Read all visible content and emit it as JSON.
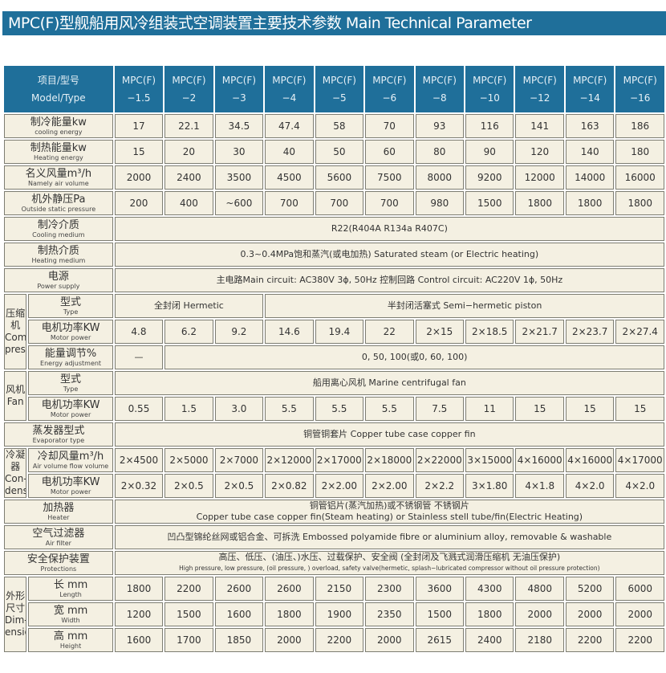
{
  "title": "MPC(F)型舰船用风冷组装式空调装置主要技术参数 Main Technical Parameter",
  "header": {
    "label_cn": "项目/型号",
    "label_en": "Model/Type",
    "models": [
      "MPC(F) −1.5",
      "MPC(F) −2",
      "MPC(F) −3",
      "MPC(F) −4",
      "MPC(F) −5",
      "MPC(F) −6",
      "MPC(F) −8",
      "MPC(F) −10",
      "MPC(F) −12",
      "MPC(F) −14",
      "MPC(F) −16"
    ]
  },
  "groups": {
    "compressor": "压缩机 Com-pressor",
    "fan": "风机 Fan",
    "condenser": "冷凝器 Con-denser",
    "dimension": "外形尺寸 Dim-ension"
  },
  "rows": [
    {
      "id": "cooling",
      "cn": "制冷能量kw",
      "en": "cooling energy",
      "cells": [
        "17",
        "22.1",
        "34.5",
        "47.4",
        "58",
        "70",
        "93",
        "116",
        "141",
        "163",
        "186"
      ]
    },
    {
      "id": "heating",
      "cn": "制热能量kw",
      "en": "Heating energy",
      "cells": [
        "15",
        "20",
        "30",
        "40",
        "50",
        "60",
        "80",
        "90",
        "120",
        "140",
        "180"
      ]
    },
    {
      "id": "air",
      "cn": "名义风量m³/h",
      "en": "Namely air volume",
      "cells": [
        "2000",
        "2400",
        "3500",
        "4500",
        "5600",
        "7500",
        "8000",
        "9200",
        "12000",
        "14000",
        "16000"
      ]
    },
    {
      "id": "static",
      "cn": "机外静压Pa",
      "en": "Outside static pressure",
      "cells": [
        "200",
        "400",
        "~600",
        "700",
        "700",
        "700",
        "980",
        "1500",
        "1800",
        "1800",
        "1800"
      ]
    },
    {
      "id": "cmedium",
      "cn": "制冷介质",
      "en": "Cooling medium",
      "cells": [
        "R22(R404A R134a R407C)"
      ]
    },
    {
      "id": "hmedium",
      "cn": "制热介质",
      "en": "Heating medium",
      "cells": [
        "0.3~0.4MPa饱和蒸汽(或电加热)  Saturated steam (or Electric heating)"
      ]
    },
    {
      "id": "power",
      "cn": "电源",
      "en": "Power supply",
      "cells": [
        "主电路Main circuit: AC380V 3ϕ, 50Hz        控制回路 Control circuit: AC220V 1ϕ, 50Hz"
      ]
    },
    {
      "id": "ctype",
      "group": "compressor",
      "cn": "型式",
      "en": "Type",
      "cells": [
        "全封闭 Hermetic",
        "半封闭活塞式 Semi−hermetic piston"
      ]
    },
    {
      "id": "cmotor",
      "group": "compressor",
      "cn": "电机功率KW",
      "en": "Motor power",
      "cells": [
        "4.8",
        "6.2",
        "9.2",
        "14.6",
        "19.4",
        "22",
        "2×15",
        "2×18.5",
        "2×21.7",
        "2×23.7",
        "2×27.4"
      ]
    },
    {
      "id": "energy",
      "group": "compressor",
      "cn": "能量调节%",
      "en": "Energy adjustment",
      "cells": [
        "—",
        "0, 50, 100(或0, 60, 100)"
      ]
    },
    {
      "id": "ftype",
      "group": "fan",
      "cn": "型式",
      "en": "Type",
      "cells": [
        "船用离心风机 Marine centrifugal fan"
      ]
    },
    {
      "id": "fmotor",
      "group": "fan",
      "cn": "电机功率KW",
      "en": "Motor power",
      "cells": [
        "0.55",
        "1.5",
        "3.0",
        "5.5",
        "5.5",
        "5.5",
        "7.5",
        "11",
        "15",
        "15",
        "15"
      ]
    },
    {
      "id": "evap",
      "cn": "蒸发器型式",
      "en": "Evaporator type",
      "cells": [
        "铜管铜套片 Copper tube case copper fin"
      ]
    },
    {
      "id": "condair",
      "group": "condenser",
      "cn": "冷却风量m³/h",
      "en": "Air volume flow volume",
      "cells": [
        "2×4500",
        "2×5000",
        "2×7000",
        "2×12000",
        "2×17000",
        "2×18000",
        "2×22000",
        "3×15000",
        "4×16000",
        "4×16000",
        "4×17000"
      ]
    },
    {
      "id": "condmotor",
      "group": "condenser",
      "cn": "电机功率KW",
      "en": "Motor power",
      "cells": [
        "2×0.32",
        "2×0.5",
        "2×0.5",
        "2×0.82",
        "2×2.00",
        "2×2.00",
        "2×2.2",
        "3×1.80",
        "4×1.8",
        "4×2.0",
        "4×2.0"
      ]
    },
    {
      "id": "heater",
      "cn": "加热器",
      "en": "Heater",
      "cells": [
        "铜管铝片(蒸汽加热)或不锈钢管 不锈钢片"
      ],
      "cells_en": "Copper tube case copper fin(Steam heating) or Stainless stell tube/fin(Electric Heating)"
    },
    {
      "id": "filter",
      "cn": "空气过滤器",
      "en": "Air filter",
      "cells": [
        "凹凸型锦纶丝网或铝合金、可拆洗 Embossed polyamide fibre or aluminium alloy, removable & washable"
      ]
    },
    {
      "id": "protect",
      "cn": "安全保护装置",
      "en": "Protections",
      "cells": [
        "高压、低压、(油压、)水压、过载保护、安全阀 (全封闭及飞溅式润滑压缩机 无油压保护)"
      ],
      "cells_en": "High pressure, low pressure, (oil pressure, ) overload, safety valve(hermetic, splash−lubricated compressor without oil pressure protection)"
    },
    {
      "id": "length",
      "group": "dimension",
      "cn": "长 mm",
      "en": "Length",
      "cells": [
        "1800",
        "2200",
        "2600",
        "2600",
        "2150",
        "2300",
        "3600",
        "4300",
        "4800",
        "5200",
        "6000"
      ]
    },
    {
      "id": "width",
      "group": "dimension",
      "cn": "宽 mm",
      "en": "Width",
      "cells": [
        "1200",
        "1500",
        "1600",
        "1800",
        "1900",
        "2350",
        "1500",
        "1800",
        "2000",
        "2000",
        "2000"
      ]
    },
    {
      "id": "height",
      "group": "dimension",
      "cn": "高 mm",
      "en": "Height",
      "cells": [
        "1600",
        "1700",
        "1850",
        "2000",
        "2200",
        "2000",
        "2615",
        "2400",
        "2180",
        "2200",
        "2200"
      ]
    }
  ]
}
